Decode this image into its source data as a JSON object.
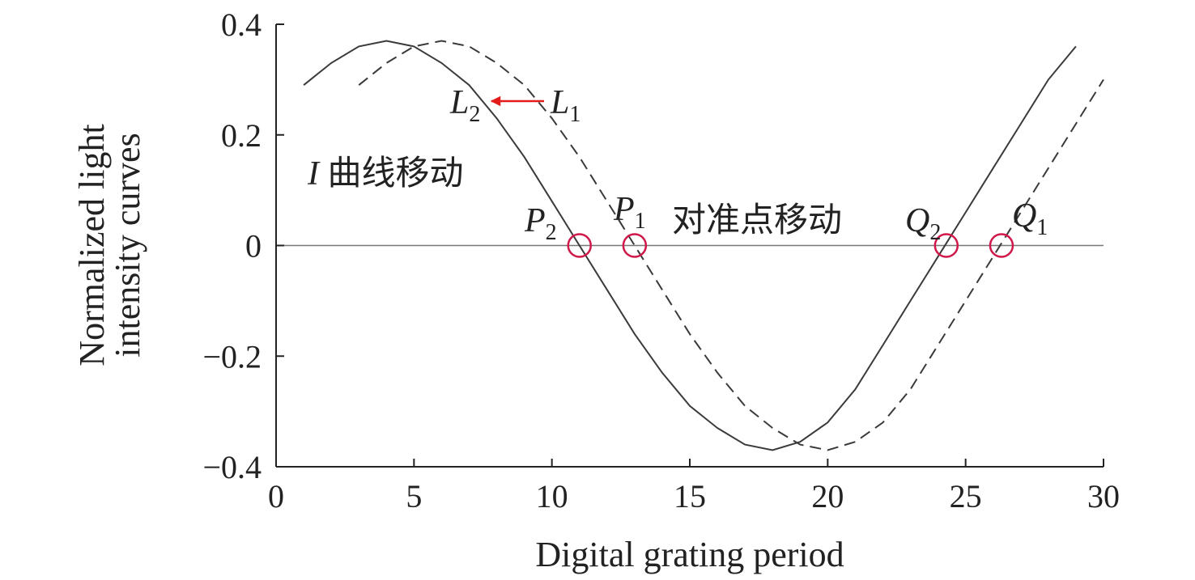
{
  "chart_data": {
    "type": "line",
    "xlabel": "Digital grating period",
    "ylabel": [
      "Normalized light",
      "intensity curves"
    ],
    "xlim": [
      0,
      30
    ],
    "xticks": [
      0,
      5,
      10,
      15,
      20,
      25,
      30
    ],
    "ylim": [
      -0.4,
      0.4
    ],
    "yticks": [
      {
        "value": -0.4,
        "label": "−0.4"
      },
      {
        "value": -0.2,
        "label": "−0.2"
      },
      0,
      0.2,
      0.4
    ],
    "zero_line": true,
    "series": [
      {
        "name": "L2",
        "color": "#3a3a3a",
        "dashed": false,
        "x": [
          1,
          2,
          3,
          4,
          5,
          6,
          7,
          8,
          9,
          10,
          11,
          12,
          13,
          14,
          15,
          16,
          17,
          18,
          19,
          20,
          21,
          22,
          23,
          24,
          25,
          26,
          27,
          28,
          29
        ],
        "values": [
          0.29,
          0.33,
          0.36,
          0.37,
          0.36,
          0.33,
          0.29,
          0.23,
          0.16,
          0.08,
          0,
          -0.08,
          -0.16,
          -0.23,
          -0.29,
          -0.33,
          -0.36,
          -0.37,
          -0.355,
          -0.32,
          -0.26,
          -0.18,
          -0.1,
          -0.02,
          0.06,
          0.14,
          0.22,
          0.3,
          0.36
        ]
      },
      {
        "name": "L1",
        "color": "#3a3a3a",
        "dashed": true,
        "x": [
          3,
          4,
          5,
          6,
          7,
          8,
          9,
          10,
          11,
          12,
          13,
          14,
          15,
          16,
          17,
          18,
          19,
          20,
          21,
          22,
          23,
          24,
          25,
          26,
          27,
          28,
          29,
          30
        ],
        "values": [
          0.29,
          0.33,
          0.36,
          0.37,
          0.36,
          0.33,
          0.29,
          0.23,
          0.16,
          0.08,
          0,
          -0.08,
          -0.16,
          -0.23,
          -0.29,
          -0.33,
          -0.36,
          -0.37,
          -0.355,
          -0.32,
          -0.26,
          -0.18,
          -0.1,
          -0.02,
          0.06,
          0.14,
          0.22,
          0.3
        ]
      }
    ],
    "highlight_points": {
      "color": "#d0184a",
      "x": [
        11,
        13,
        24.3,
        26.3
      ],
      "y": [
        0,
        0,
        0,
        0
      ]
    },
    "annotations": [
      {
        "base": "L",
        "sub": "2"
      },
      {
        "base": "L",
        "sub": "1"
      },
      {
        "base": "I",
        "text": " 曲线移动"
      },
      {
        "base": "P",
        "sub": "2"
      },
      {
        "base": "P",
        "sub": "1"
      },
      {
        "text": "对准点移动"
      },
      {
        "base": "Q",
        "sub": "2"
      },
      {
        "base": "Q",
        "sub": "1"
      }
    ]
  }
}
